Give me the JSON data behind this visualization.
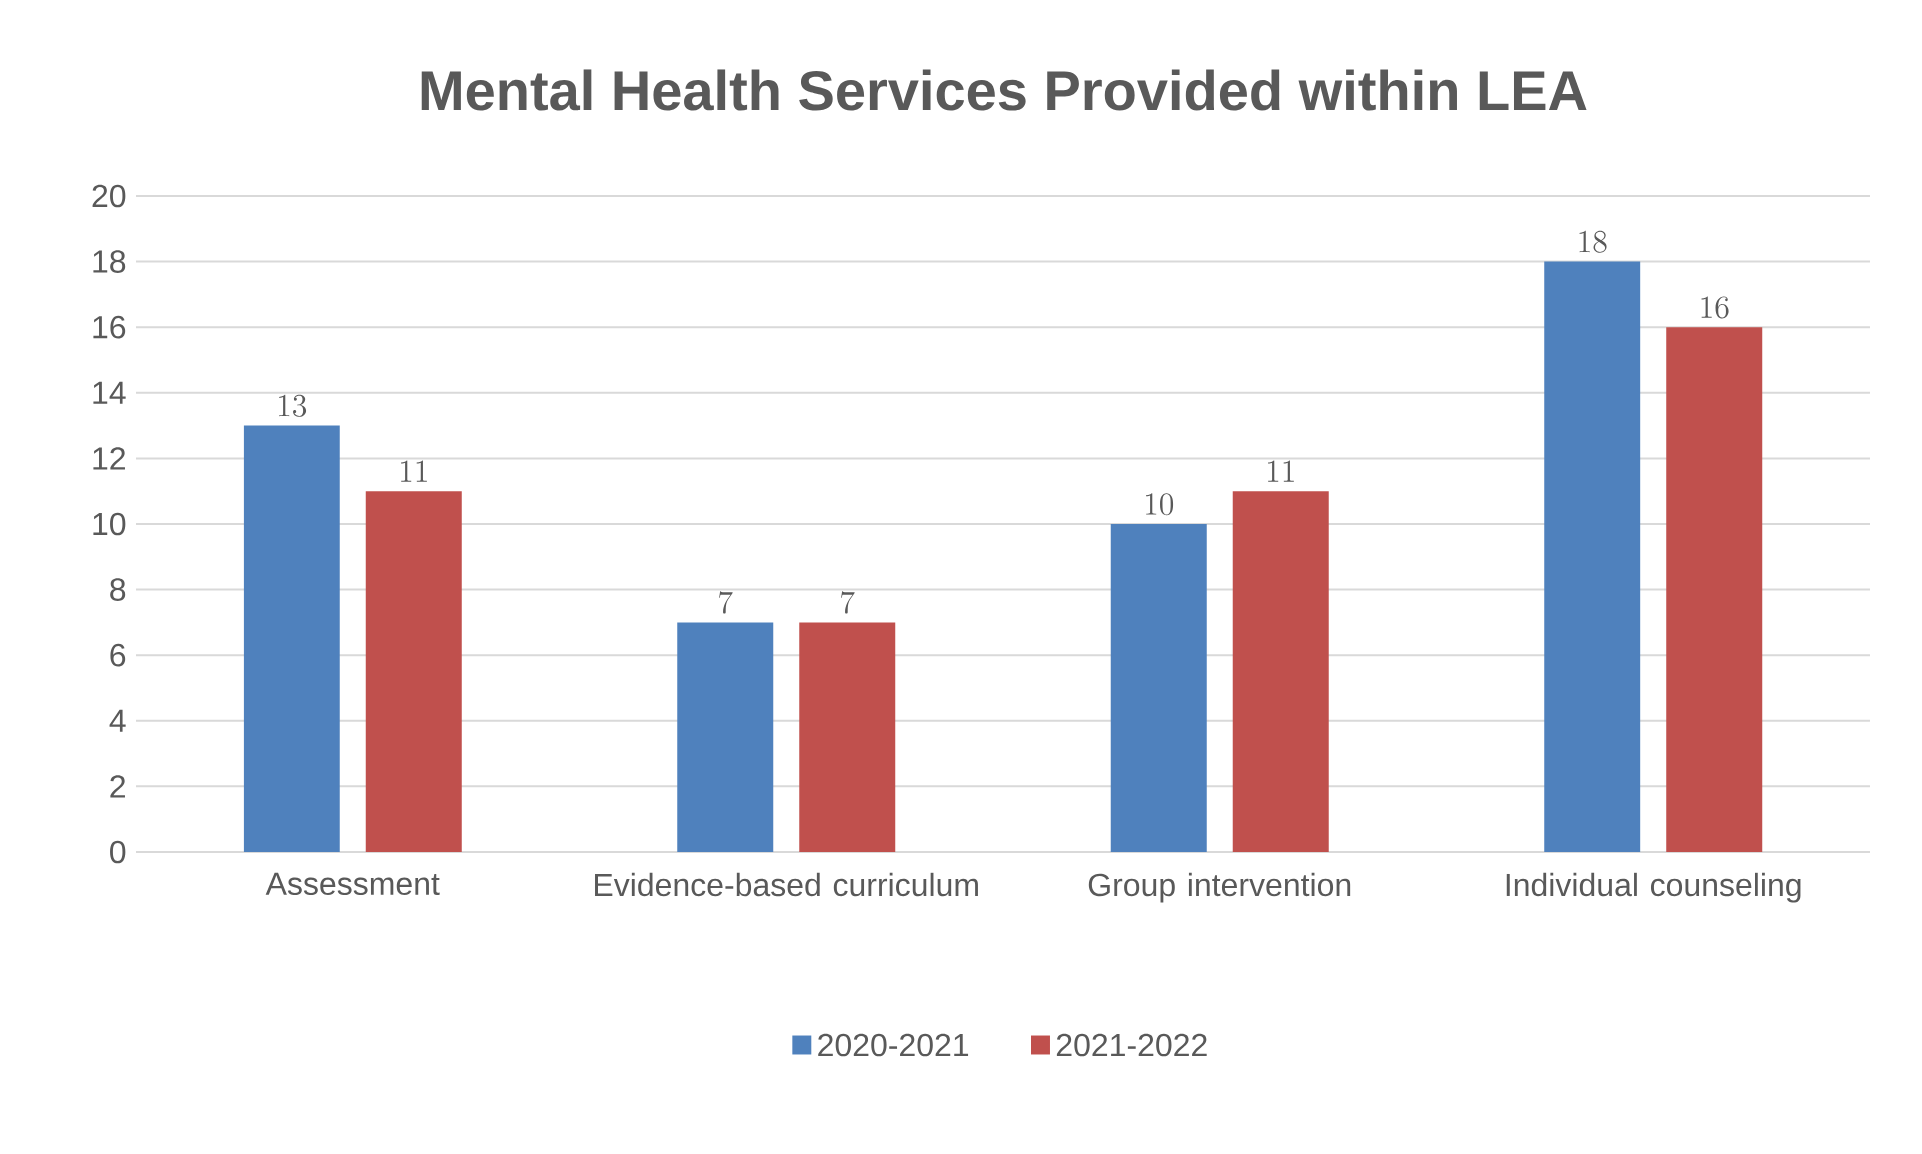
{
  "chart_data": {
    "type": "bar",
    "title": "Mental Health Services Provided within LEA",
    "categories": [
      "Assessment",
      "Evidence-based curriculum",
      "Group intervention",
      "Individual counseling"
    ],
    "series": [
      {
        "name": "2020-2021",
        "color": "#4f81bd",
        "values": [
          13,
          7,
          10,
          18
        ]
      },
      {
        "name": "2021-2022",
        "color": "#c0504d",
        "values": [
          11,
          7,
          11,
          16
        ]
      }
    ],
    "ylim": [
      0,
      20
    ],
    "yticks": [
      0,
      2,
      4,
      6,
      8,
      10,
      12,
      14,
      16,
      18,
      20
    ],
    "grid": "y",
    "data_labels": true,
    "legend": "bottom"
  }
}
